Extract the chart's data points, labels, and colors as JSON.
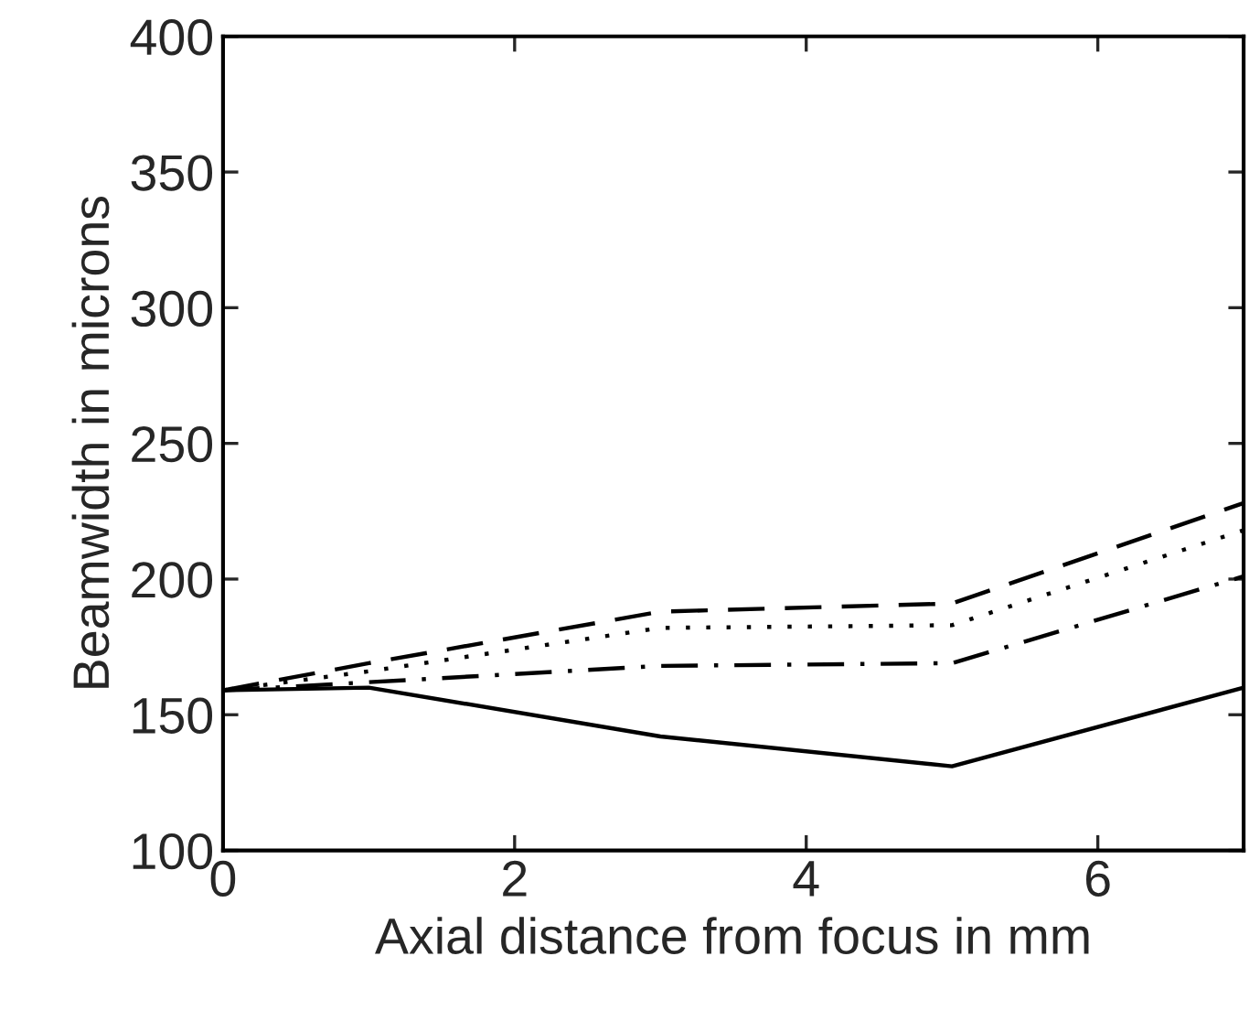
{
  "chart_data": {
    "type": "line",
    "xlabel": "Axial distance from focus in mm",
    "ylabel": "Beamwidth in microns",
    "x": [
      0,
      1,
      3,
      5,
      7
    ],
    "series": [
      {
        "color": "#000000",
        "line_style": "solid",
        "values": [
          159,
          160,
          142,
          131,
          160
        ]
      },
      {
        "color": "#000000",
        "line_style": "dashed",
        "values": [
          159,
          169,
          188,
          191,
          228
        ]
      },
      {
        "color": "#000000",
        "line_style": "dotted",
        "values": [
          159,
          166,
          182,
          183,
          218
        ]
      },
      {
        "color": "#000000",
        "line_style": "dashdot",
        "values": [
          159,
          162,
          168,
          169,
          201
        ]
      }
    ],
    "xlim": [
      0,
      7
    ],
    "xticks": [
      0,
      2,
      4,
      6
    ],
    "ylim": [
      100,
      400
    ],
    "yticks": [
      100,
      150,
      200,
      250,
      300,
      350,
      400
    ],
    "grid": false,
    "legend": false,
    "marker": "none"
  }
}
